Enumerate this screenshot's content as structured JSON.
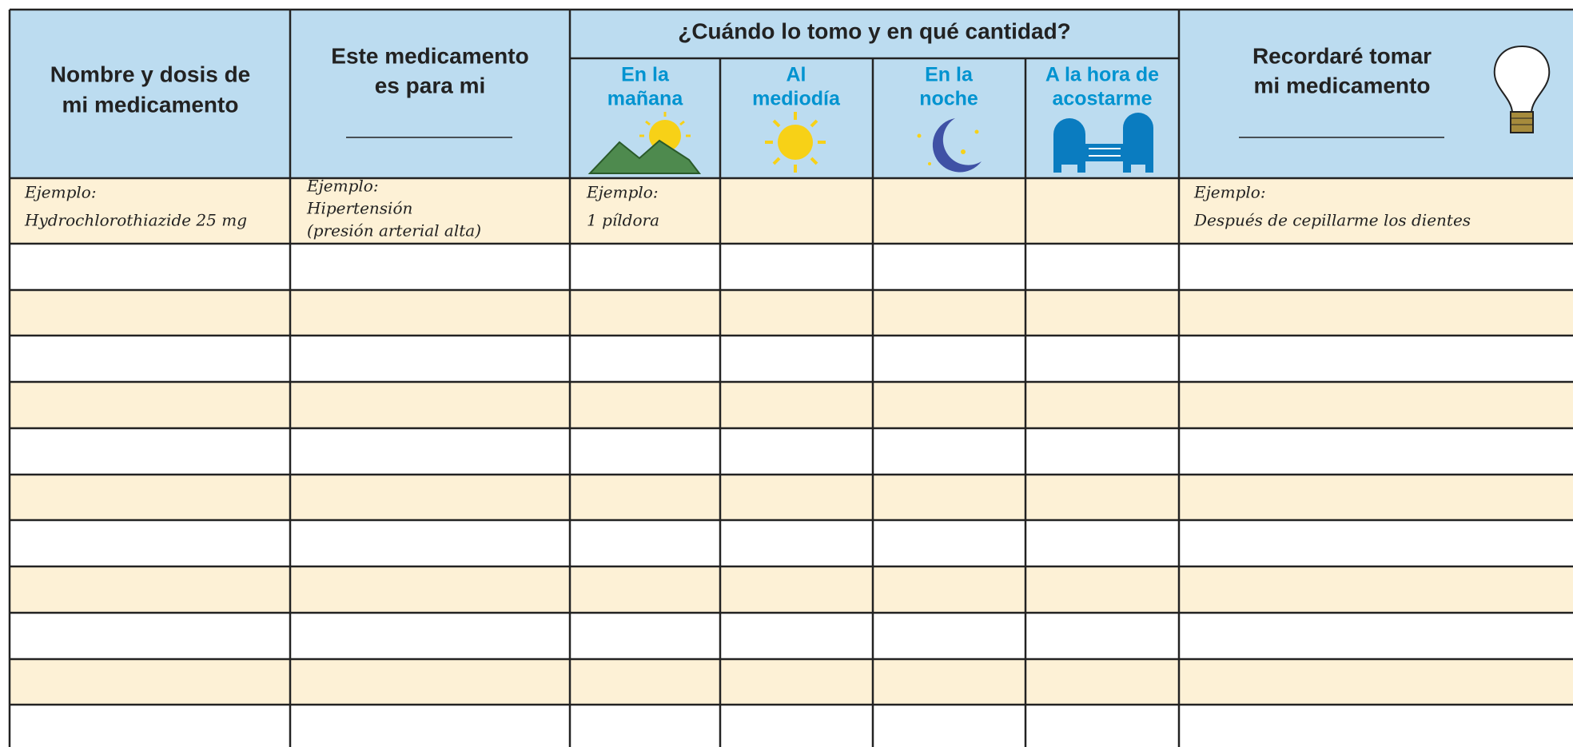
{
  "header": {
    "name": [
      "Nombre y dosis de",
      "mi medicamento"
    ],
    "purpose": [
      "Este medicamento",
      "es para mi"
    ],
    "when": "¿Cuándo lo tomo y en qué cantidad?",
    "times": [
      [
        "En la",
        "mañana"
      ],
      [
        "Al",
        "mediodía"
      ],
      [
        "En la",
        "noche"
      ],
      [
        "A la hora de",
        "acostarme"
      ]
    ],
    "reminder": [
      "Recordaré tomar",
      "mi medicamento"
    ]
  },
  "example": {
    "name": [
      "Ejemplo:",
      "Hydrochlorothiazide 25 mg"
    ],
    "purpose": [
      "Ejemplo:",
      "Hipertensión",
      "(presión arterial alta)"
    ],
    "morning": [
      "Ejemplo:",
      "1 píldora"
    ],
    "reminder": [
      "Ejemplo:",
      "Después de cepillarme los dientes"
    ]
  }
}
